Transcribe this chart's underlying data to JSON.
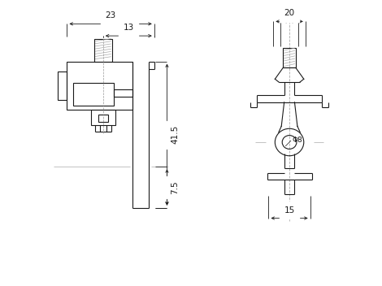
{
  "bg_color": "#ffffff",
  "line_color": "#1a1a1a",
  "dim_color": "#1a1a1a",
  "figsize": [
    4.7,
    3.52
  ],
  "dpi": 100,
  "lw": 0.8,
  "dim_lw": 0.6,
  "hatch_lw": 0.5,
  "fontsize": 7.5
}
